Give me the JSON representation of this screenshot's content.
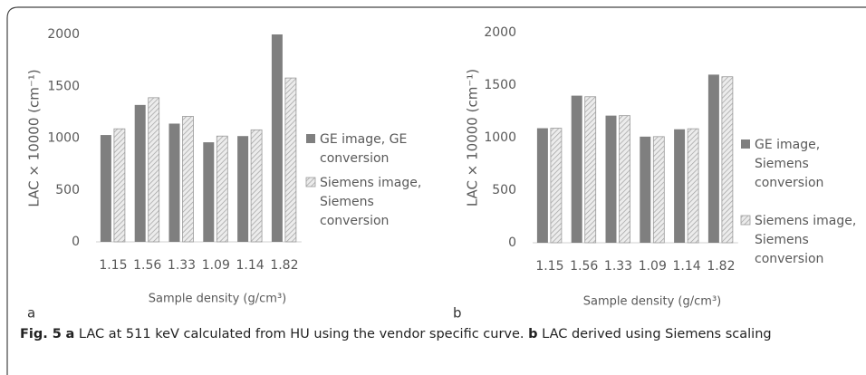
{
  "chart_data": [
    {
      "type": "bar",
      "panel": "a",
      "xlabel": "Sample density (g/cm³)",
      "ylabel": "LAC × 10000 (cm⁻¹)",
      "categories": [
        "1.15",
        "1.56",
        "1.33",
        "1.09",
        "1.14",
        "1.82"
      ],
      "series": [
        {
          "name": "GE image, GE conversion",
          "color": "#7f7f7f",
          "hatch": false,
          "values": [
            1030,
            1320,
            1140,
            960,
            1020,
            2000
          ]
        },
        {
          "name": "Siemens image, Siemens conversion",
          "color": "#bfbfbf",
          "hatch": true,
          "values": [
            1090,
            1390,
            1210,
            1020,
            1080,
            1580
          ]
        }
      ],
      "ylim": [
        0,
        2000
      ],
      "yticks": [
        0,
        500,
        1000,
        1500,
        2000
      ]
    },
    {
      "type": "bar",
      "panel": "b",
      "xlabel": "Sample density (g/cm³)",
      "ylabel": "LAC × 10000 (cm⁻¹)",
      "categories": [
        "1.15",
        "1.56",
        "1.33",
        "1.09",
        "1.14",
        "1.82"
      ],
      "series": [
        {
          "name": "GE image, Siemens conversion",
          "color": "#7f7f7f",
          "hatch": false,
          "values": [
            1090,
            1400,
            1210,
            1010,
            1080,
            1600
          ]
        },
        {
          "name": "Siemens image, Siemens conversion",
          "color": "#bfbfbf",
          "hatch": true,
          "values": [
            1090,
            1390,
            1210,
            1010,
            1085,
            1580
          ]
        }
      ],
      "ylim": [
        0,
        2000
      ],
      "yticks": [
        0,
        500,
        1000,
        1500,
        2000
      ]
    }
  ],
  "caption": {
    "label": "Fig. 5",
    "parts": [
      {
        "tag": "a",
        "text": "LAC at 511 keV calculated from HU using the vendor specific curve."
      },
      {
        "tag": "b",
        "text": "LAC derived using Siemens scaling"
      }
    ]
  }
}
